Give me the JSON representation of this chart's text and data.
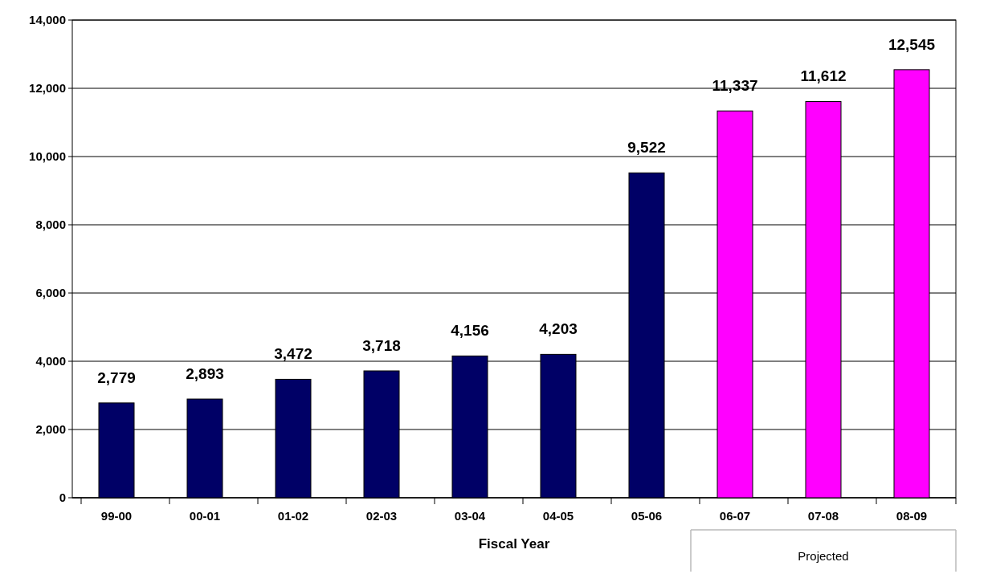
{
  "chart_data": {
    "type": "bar",
    "xlabel": "Fiscal Year",
    "categories": [
      "99-00",
      "00-01",
      "01-02",
      "02-03",
      "03-04",
      "04-05",
      "05-06",
      "06-07",
      "07-08",
      "08-09"
    ],
    "values": [
      2779,
      2893,
      3472,
      3718,
      4156,
      4203,
      9522,
      11337,
      11612,
      12545
    ],
    "colors": [
      "#000066",
      "#000066",
      "#000066",
      "#000066",
      "#000066",
      "#000066",
      "#000066",
      "#ff00ff",
      "#ff00ff",
      "#ff00ff"
    ],
    "value_labels": [
      "2,779",
      "2,893",
      "3,472",
      "3,718",
      "4,156",
      "4,203",
      "9,522",
      "11,337",
      "11,612",
      "12,545"
    ],
    "ylim": [
      0,
      14000
    ],
    "yticks": [
      0,
      {
        "value": 2000,
        "label": "2,000"
      },
      {
        "value": 4000,
        "label": "4,000"
      },
      {
        "value": 6000,
        "label": "6,000"
      },
      {
        "value": 8000,
        "label": "8,000"
      },
      {
        "value": 10000,
        "label": "10,000"
      },
      {
        "value": 12000,
        "label": "12,000"
      },
      {
        "value": 14000,
        "label": "14,000"
      }
    ],
    "grid": "y",
    "annotations": [
      "Projected"
    ]
  }
}
